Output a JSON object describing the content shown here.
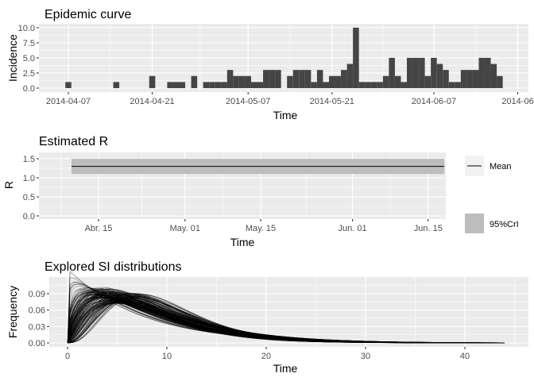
{
  "chart_data": [
    {
      "id": "epicurve",
      "type": "bar",
      "title": "Epidemic curve",
      "xlabel": "Time",
      "ylabel": "Incidence",
      "ylim": [
        0,
        10.5
      ],
      "y_ticks": [
        0.0,
        2.5,
        5.0,
        7.5,
        10.0
      ],
      "y_tick_labels": [
        "0.0",
        "2.5",
        "5.0",
        "7.5",
        "10.0"
      ],
      "x_ticks": [
        "2014-04-07",
        "2014-04-21",
        "2014-05-07",
        "2014-05-21",
        "2014-06-07",
        "2014-06"
      ],
      "x_tick_labels": [
        "2014-04-07",
        "2014-04-21",
        "2014-05-07",
        "2014-05-21",
        "2014-06-07",
        "2014-06"
      ],
      "start_date": "2014-04-07",
      "values": [
        1,
        0,
        0,
        0,
        0,
        0,
        0,
        0,
        1,
        0,
        0,
        0,
        0,
        0,
        2,
        0,
        0,
        1,
        1,
        1,
        0,
        2,
        0,
        1,
        1,
        1,
        1,
        3,
        2,
        2,
        2,
        1,
        1,
        3,
        3,
        3,
        0,
        2,
        3,
        3,
        3,
        1,
        3,
        1,
        2,
        2,
        3,
        4,
        10,
        1,
        1,
        1,
        1,
        2,
        5,
        2,
        1,
        5,
        5,
        5,
        2,
        5,
        4,
        3,
        1,
        1,
        3,
        3,
        3,
        5,
        5,
        4,
        2
      ]
    },
    {
      "id": "estimated-r",
      "type": "line",
      "title": "Estimated R",
      "xlabel": "Time",
      "ylabel": "R",
      "ylim": [
        0,
        1.5
      ],
      "y_ticks": [
        0.0,
        0.5,
        1.0,
        1.5
      ],
      "y_tick_labels": [
        "0.0",
        "0.5",
        "1.0",
        "1.5"
      ],
      "x_tick_labels": [
        "Abr. 15",
        "May. 01",
        "May. 15",
        "Jun. 01",
        "Jun. 15"
      ],
      "x_start": "2014-04-10",
      "x_end": "2014-06-18",
      "mean_R": 1.3,
      "ci_lower": 1.1,
      "ci_upper": 1.5,
      "series": [
        {
          "name": "Mean",
          "color": "#000000"
        },
        {
          "name": "95%CrI",
          "color": "#bdbdbd"
        }
      ],
      "legend_position": "right"
    },
    {
      "id": "si-distributions",
      "type": "line",
      "title": "Explored SI distributions",
      "xlabel": "Time",
      "ylabel": "Frequency",
      "xlim": [
        0,
        44
      ],
      "ylim": [
        0,
        0.115
      ],
      "x_ticks": [
        0,
        10,
        20,
        30,
        40
      ],
      "x_tick_labels": [
        "0",
        "10",
        "20",
        "30",
        "40"
      ],
      "y_ticks": [
        0.0,
        0.03,
        0.06,
        0.09
      ],
      "y_tick_labels": [
        "0.00",
        "0.03",
        "0.06",
        "0.09"
      ],
      "n_curves": 1000,
      "curve_family": "gamma",
      "mean_si_peak_time": 5,
      "peak_frequency_range": [
        0.075,
        0.1
      ]
    }
  ]
}
